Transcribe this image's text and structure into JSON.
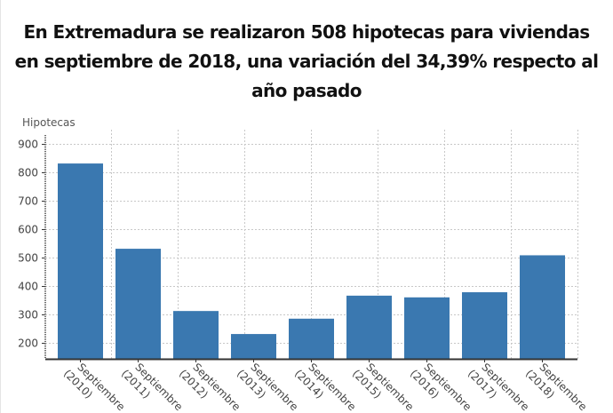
{
  "title": {
    "lines": [
      "En Extremadura se realizaron 508 hipotecas para viviendas",
      "en septiembre de 2018, una variación del 34,39% respecto al",
      "año pasado"
    ]
  },
  "colors": {
    "bar": "#3a78b0",
    "grid": "#c8c8c8",
    "axis": "#333333",
    "text": "#444444"
  },
  "chart_data": {
    "type": "bar",
    "title": "En Extremadura se realizaron 508 hipotecas para viviendas en septiembre de 2018, una variación del 34,39% respecto al año pasado",
    "xlabel": "",
    "ylabel": "Hipotecas",
    "categories": [
      "Septiembre (2010)",
      "Septiembre (2011)",
      "Septiembre (2012)",
      "Septiembre (2013)",
      "Septiembre (2014)",
      "Septiembre (2015)",
      "Septiembre (2016)",
      "Septiembre (2017)",
      "Septiembre (2018)"
    ],
    "values": [
      831,
      531,
      312,
      231,
      285,
      366,
      360,
      378,
      508
    ],
    "ylim": [
      144,
      900
    ],
    "yticks": [
      200,
      300,
      400,
      500,
      600,
      700,
      800,
      900
    ],
    "grid": true,
    "legend": null
  }
}
